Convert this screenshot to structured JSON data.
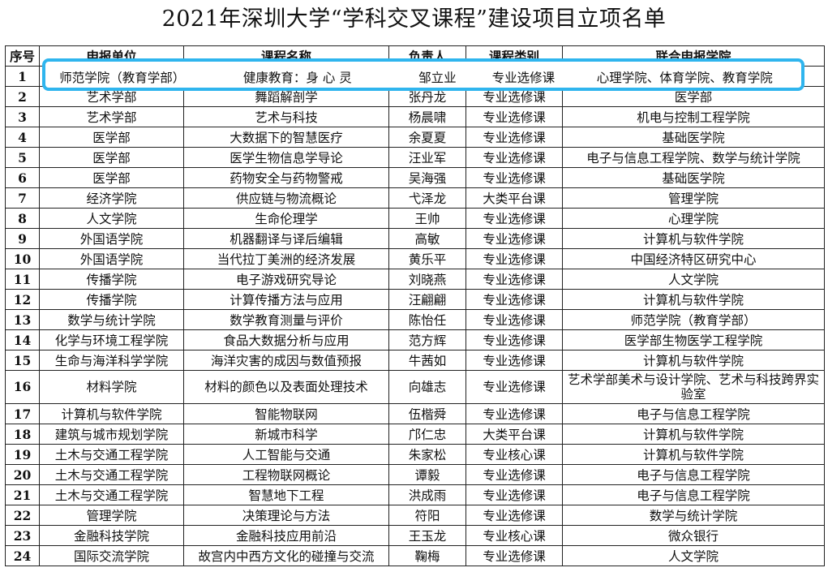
{
  "title": "2021年深圳大学“学科交叉课程”建设项目立项名单",
  "headers": [
    "序号",
    "申报单位",
    "课程名称",
    "负责人",
    "课程类别",
    "联合申报学院"
  ],
  "rows": [
    [
      "1",
      "师范学院（教育学部）",
      "健康教育：身 心 灵",
      "邹立业",
      "专业选修课",
      "心理学院、体育学院、教育学院"
    ],
    [
      "2",
      "艺术学部",
      "舞蹈解剖学",
      "张丹龙",
      "专业选修课",
      "医学部"
    ],
    [
      "3",
      "艺术学部",
      "艺术与科技",
      "杨晨啸",
      "专业选修课",
      "机电与控制工程学院"
    ],
    [
      "4",
      "医学部",
      "大数据下的智慧医疗",
      "余夏夏",
      "专业选修课",
      "基础医学院"
    ],
    [
      "5",
      "医学部",
      "医学生物信息学导论",
      "汪业军",
      "专业选修课",
      "电子与信息工程学院、数学与统计学院"
    ],
    [
      "6",
      "医学部",
      "药物安全与药物警戒",
      "吴海强",
      "专业选修课",
      "基础医学院"
    ],
    [
      "7",
      "经济学院",
      "供应链与物流概论",
      "弋泽龙",
      "大类平台课",
      "管理学院"
    ],
    [
      "8",
      "人文学院",
      "生命伦理学",
      "王帅",
      "专业选修课",
      "心理学院"
    ],
    [
      "9",
      "外国语学院",
      "机器翻译与译后编辑",
      "高敏",
      "专业选修课",
      "计算机与软件学院"
    ],
    [
      "10",
      "外国语学院",
      "当代拉丁美洲的经济发展",
      "黄乐平",
      "专业选修课",
      "中国经济特区研究中心"
    ],
    [
      "11",
      "传播学院",
      "电子游戏研究导论",
      "刘晓燕",
      "专业选修课",
      "人文学院"
    ],
    [
      "12",
      "传播学院",
      "计算传播方法与应用",
      "汪翩翩",
      "专业选修课",
      "计算机与软件学院"
    ],
    [
      "13",
      "数学与统计学院",
      "数学教育测量与评价",
      "陈怡任",
      "专业选修课",
      "师范学院（教育学部）"
    ],
    [
      "14",
      "化学与环境工程学院",
      "食品大数据分析与应用",
      "范方辉",
      "专业选修课",
      "医学部生物医学工程学院"
    ],
    [
      "15",
      "生命与海洋科学学院",
      "海洋灾害的成因与数值预报",
      "牛茜如",
      "专业选修课",
      "计算机与软件学院"
    ],
    [
      "16",
      "材料学院",
      "材料的颜色以及表面处理技术",
      "向雄志",
      "专业选修课",
      "艺术学部美术与设计学院、艺术与科技跨界实验室"
    ],
    [
      "17",
      "计算机与软件学院",
      "智能物联网",
      "伍楷舜",
      "专业选修课",
      "电子与信息工程学院"
    ],
    [
      "18",
      "建筑与城市规划学院",
      "新城市科学",
      "邝仁忠",
      "大类平台课",
      "计算机与软件学院"
    ],
    [
      "19",
      "土木与交通工程学院",
      "人工智能与交通",
      "朱家松",
      "专业核心课",
      "计算机与软件学院"
    ],
    [
      "20",
      "土木与交通工程学院",
      "工程物联网概论",
      "谭毅",
      "专业选修课",
      "电子与信息工程学院"
    ],
    [
      "21",
      "土木与交通工程学院",
      "智慧地下工程",
      "洪成雨",
      "专业选修课",
      "电子与信息工程学院"
    ],
    [
      "22",
      "管理学院",
      "决策理论与方法",
      "符阳",
      "专业选修课",
      "数学与统计学院"
    ],
    [
      "23",
      "金融科技学院",
      "金融科技应用前沿",
      "王玉龙",
      "专业核心课",
      "微众银行"
    ],
    [
      "24",
      "国际交流学院",
      "故宫内中西方文化的碰撞与交流",
      "鞠梅",
      "专业选修课",
      "人文学院"
    ]
  ],
  "highlight_color": "#2fb5ee"
}
